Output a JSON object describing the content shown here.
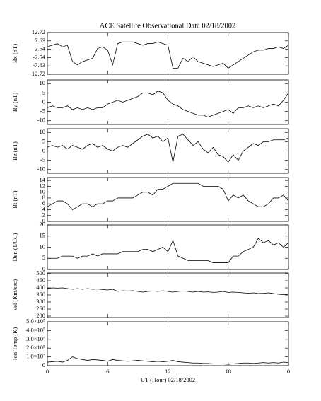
{
  "chart_data": [
    {
      "type": "line",
      "title": "ACE Satellite Observational Data  02/18/2002",
      "ylabel": "Bx (nT)",
      "xlim": [
        0,
        24
      ],
      "ylim": [
        -12.72,
        12.72
      ],
      "yticks": [
        -12.72,
        -7.63,
        -2.54,
        2.54,
        7.63,
        12.72
      ],
      "series": [
        {
          "color": "#000000",
          "x": [
            0,
            0.5,
            1,
            1.5,
            2,
            2.5,
            3,
            3.5,
            4,
            4.5,
            5,
            5.5,
            6,
            6.5,
            7,
            7.5,
            8,
            8.5,
            9,
            9.5,
            10,
            10.5,
            11,
            11.5,
            12,
            12.5,
            13,
            13.5,
            14,
            14.5,
            15,
            15.5,
            16,
            16.5,
            17,
            17.5,
            18,
            18.5,
            19,
            19.5,
            20,
            20.5,
            21,
            21.5,
            22,
            22.5,
            23,
            23.5,
            24
          ],
          "values": [
            4,
            5,
            6,
            4,
            5,
            -5,
            -7,
            -5,
            -4,
            -3,
            3,
            4,
            2,
            -7,
            6,
            7,
            7,
            7,
            6,
            5,
            6,
            6,
            7,
            6,
            5,
            -9,
            -9,
            -3,
            -5,
            -2,
            -5,
            -6,
            -7,
            -8,
            -7,
            -6,
            -9,
            -7,
            -5,
            -3,
            -1,
            1,
            2,
            2,
            3,
            3,
            4,
            3,
            5
          ]
        }
      ]
    },
    {
      "type": "line",
      "ylabel": "By (nT)",
      "xlim": [
        0,
        24
      ],
      "ylim": [
        -12,
        12
      ],
      "yticks": [
        -10,
        -5,
        0,
        5,
        10
      ],
      "series": [
        {
          "color": "#000000",
          "x": [
            0,
            0.5,
            1,
            1.5,
            2,
            2.5,
            3,
            3.5,
            4,
            4.5,
            5,
            5.5,
            6,
            6.5,
            7,
            7.5,
            8,
            8.5,
            9,
            9.5,
            10,
            10.5,
            11,
            11.5,
            12,
            12.5,
            13,
            13.5,
            14,
            14.5,
            15,
            15.5,
            16,
            16.5,
            17,
            17.5,
            18,
            18.5,
            19,
            19.5,
            20,
            20.5,
            21,
            21.5,
            22,
            22.5,
            23,
            23.5,
            24
          ],
          "values": [
            -3,
            -2,
            -3,
            -3,
            -2,
            -4,
            -3,
            -4,
            -3,
            -4,
            -3,
            -3,
            -1,
            0,
            1,
            0,
            1,
            2,
            3,
            5,
            5,
            4,
            6,
            5,
            1,
            -1,
            -2,
            -4,
            -5,
            -6,
            -7,
            -7,
            -8,
            -7,
            -6,
            -5,
            -4,
            -6,
            -3,
            -3,
            -2,
            -3,
            -2,
            -3,
            -2,
            -1,
            -2,
            1,
            5
          ]
        }
      ]
    },
    {
      "type": "line",
      "ylabel": "Bz (nT)",
      "xlim": [
        0,
        24
      ],
      "ylim": [
        -12,
        12
      ],
      "yticks": [
        -10,
        -5,
        0,
        5,
        10
      ],
      "series": [
        {
          "color": "#000000",
          "x": [
            0,
            0.5,
            1,
            1.5,
            2,
            2.5,
            3,
            3.5,
            4,
            4.5,
            5,
            5.5,
            6,
            6.5,
            7,
            7.5,
            8,
            8.5,
            9,
            9.5,
            10,
            10.5,
            11,
            11.5,
            12,
            12.5,
            13,
            13.5,
            14,
            14.5,
            15,
            15.5,
            16,
            16.5,
            17,
            17.5,
            18,
            18.5,
            19,
            19.5,
            20,
            20.5,
            21,
            21.5,
            22,
            22.5,
            23,
            23.5,
            24
          ],
          "values": [
            2,
            3,
            2,
            3,
            1,
            3,
            2,
            1,
            3,
            4,
            2,
            3,
            1,
            0,
            2,
            3,
            2,
            4,
            6,
            8,
            9,
            7,
            8,
            5,
            7,
            -6,
            8,
            9,
            6,
            3,
            5,
            1,
            -1,
            2,
            -2,
            -3,
            -6,
            -2,
            -5,
            0,
            2,
            4,
            3,
            5,
            5,
            6,
            6,
            6,
            7
          ]
        }
      ]
    },
    {
      "type": "line",
      "ylabel": "Bt (nT)",
      "xlim": [
        0,
        24
      ],
      "ylim": [
        0,
        15
      ],
      "yticks": [
        0,
        2,
        4,
        6,
        8,
        10,
        12,
        14
      ],
      "series": [
        {
          "color": "#000000",
          "x": [
            0,
            0.5,
            1,
            1.5,
            2,
            2.5,
            3,
            3.5,
            4,
            4.5,
            5,
            5.5,
            6,
            6.5,
            7,
            7.5,
            8,
            8.5,
            9,
            9.5,
            10,
            10.5,
            11,
            11.5,
            12,
            12.5,
            13,
            13.5,
            14,
            14.5,
            15,
            15.5,
            16,
            16.5,
            17,
            17.5,
            18,
            18.5,
            19,
            19.5,
            20,
            20.5,
            21,
            21.5,
            22,
            22.5,
            23,
            23.5,
            24
          ],
          "values": [
            5,
            6,
            7,
            7,
            6,
            4,
            5,
            6,
            6,
            5,
            6,
            6,
            7,
            7,
            8,
            8,
            8,
            8,
            9,
            10,
            10,
            9,
            11,
            11,
            12,
            13,
            13,
            13,
            13,
            13,
            13,
            12,
            12,
            12,
            12,
            11,
            7,
            9,
            8,
            9,
            7,
            6,
            5,
            5,
            6,
            8,
            8,
            9,
            7
          ]
        }
      ]
    },
    {
      "type": "line",
      "ylabel": "Den (1/CC)",
      "xlim": [
        0,
        24
      ],
      "ylim": [
        0,
        20
      ],
      "yticks": [
        0,
        5,
        10,
        15,
        20
      ],
      "series": [
        {
          "color": "#000000",
          "x": [
            0,
            0.5,
            1,
            1.5,
            2,
            2.5,
            3,
            3.5,
            4,
            4.5,
            5,
            5.5,
            6,
            6.5,
            7,
            7.5,
            8,
            8.5,
            9,
            9.5,
            10,
            10.5,
            11,
            11.5,
            12,
            12.5,
            13,
            13.5,
            14,
            14.5,
            15,
            15.5,
            16,
            16.5,
            17,
            17.5,
            18,
            18.5,
            19,
            19.5,
            20,
            20.5,
            21,
            21.5,
            22,
            22.5,
            23,
            23.5,
            24
          ],
          "values": [
            5,
            5,
            5,
            6,
            6,
            6,
            5,
            6,
            6,
            7,
            6,
            7,
            7,
            7,
            7,
            8,
            8,
            8,
            8,
            9,
            9,
            8,
            9,
            10,
            8,
            13,
            6,
            5,
            4,
            4,
            4,
            4,
            4,
            3,
            3,
            3,
            3,
            6,
            6,
            8,
            9,
            10,
            14,
            12,
            13,
            11,
            12,
            10,
            12
          ]
        }
      ]
    },
    {
      "type": "line",
      "ylabel": "Vel (Km/sec)",
      "xlim": [
        0,
        24
      ],
      "ylim": [
        190,
        505
      ],
      "yticks": [
        200,
        250,
        300,
        350,
        400,
        450,
        500
      ],
      "series": [
        {
          "color": "#000000",
          "x": [
            0,
            0.5,
            1,
            1.5,
            2,
            2.5,
            3,
            3.5,
            4,
            4.5,
            5,
            5.5,
            6,
            6.5,
            7,
            7.5,
            8,
            8.5,
            9,
            9.5,
            10,
            10.5,
            11,
            11.5,
            12,
            12.5,
            13,
            13.5,
            14,
            14.5,
            15,
            15.5,
            16,
            16.5,
            17,
            17.5,
            18,
            18.5,
            19,
            19.5,
            20,
            20.5,
            21,
            21.5,
            22,
            22.5,
            23,
            23.5,
            24
          ],
          "values": [
            395,
            400,
            398,
            400,
            395,
            390,
            395,
            390,
            395,
            390,
            392,
            388,
            385,
            390,
            375,
            380,
            378,
            380,
            375,
            370,
            375,
            378,
            375,
            380,
            375,
            370,
            375,
            378,
            375,
            370,
            375,
            370,
            372,
            368,
            370,
            375,
            368,
            370,
            368,
            365,
            362,
            365,
            360,
            362,
            365,
            360,
            355,
            352,
            355
          ]
        }
      ]
    },
    {
      "type": "line",
      "ylabel": "Ion Temp (K)",
      "xlabel": "UT (Hour)  02/18/2002",
      "xlim": [
        0,
        24
      ],
      "xticks": [
        0,
        6,
        12,
        18,
        {
          "value": 24,
          "label": "0"
        }
      ],
      "ylim": [
        0,
        500000
      ],
      "yticks": [
        0,
        {
          "value": 100000,
          "label": "1.0×10⁵"
        },
        {
          "value": 200000,
          "label": "2.0×10⁵"
        },
        {
          "value": 300000,
          "label": "3.0×10⁵"
        },
        {
          "value": 400000,
          "label": "4.0×10⁵"
        },
        {
          "value": 500000,
          "label": "5.0×10⁵"
        }
      ],
      "series": [
        {
          "color": "#000000",
          "x": [
            0,
            0.5,
            1,
            1.5,
            2,
            2.5,
            3,
            3.5,
            4,
            4.5,
            5,
            5.5,
            6,
            6.5,
            7,
            7.5,
            8,
            8.5,
            9,
            9.5,
            10,
            10.5,
            11,
            11.5,
            12,
            12.5,
            13,
            13.5,
            14,
            14.5,
            15,
            15.5,
            16,
            16.5,
            17,
            17.5,
            18,
            18.5,
            19,
            19.5,
            20,
            20.5,
            21,
            21.5,
            22,
            22.5,
            23,
            23.5,
            24
          ],
          "values": [
            40000,
            45000,
            50000,
            40000,
            60000,
            100000,
            80000,
            70000,
            60000,
            70000,
            65000,
            60000,
            50000,
            70000,
            60000,
            55000,
            50000,
            55000,
            60000,
            55000,
            50000,
            45000,
            50000,
            45000,
            50000,
            60000,
            45000,
            40000,
            35000,
            30000,
            30000,
            25000,
            25000,
            20000,
            20000,
            20000,
            15000,
            20000,
            25000,
            30000,
            30000,
            25000,
            30000,
            35000,
            30000,
            35000,
            30000,
            40000,
            35000
          ]
        }
      ]
    }
  ]
}
